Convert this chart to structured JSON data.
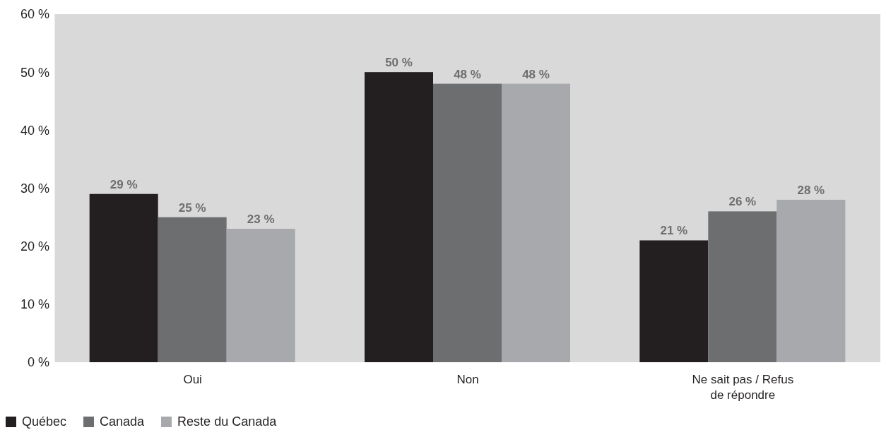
{
  "chart_data": {
    "type": "bar",
    "categories": [
      "Oui",
      "Non",
      "Ne sait pas / Refus de répondre"
    ],
    "series": [
      {
        "name": "Québec",
        "color": "#231f20",
        "values": [
          29,
          50,
          21
        ],
        "value_labels": [
          "29 %",
          "50 %",
          "21 %"
        ]
      },
      {
        "name": "Canada",
        "color": "#6d6e70",
        "values": [
          25,
          48,
          26
        ],
        "value_labels": [
          "25 %",
          "48 %",
          "26 %"
        ]
      },
      {
        "name": "Reste du Canada",
        "color": "#a7a9ac",
        "values": [
          23,
          48,
          28
        ],
        "value_labels": [
          "23 %",
          "48 %",
          "28 %"
        ]
      }
    ],
    "ylim": [
      0,
      60
    ],
    "yticks": [
      {
        "value": 0,
        "label": "0 %"
      },
      {
        "value": 10,
        "label": "10 %"
      },
      {
        "value": 20,
        "label": "20 %"
      },
      {
        "value": 30,
        "label": "30 %"
      },
      {
        "value": 40,
        "label": "40 %"
      },
      {
        "value": 50,
        "label": "50 %"
      },
      {
        "value": 60,
        "label": "60 %"
      }
    ],
    "grid": false,
    "legend": "bottom left"
  }
}
